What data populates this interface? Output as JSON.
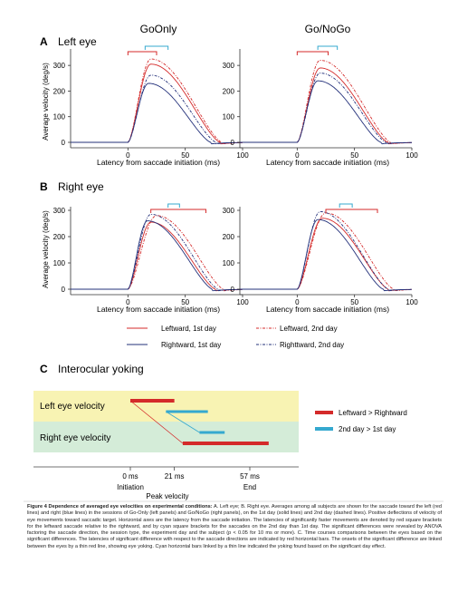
{
  "columns": [
    "GoOnly",
    "Go/NoGo"
  ],
  "panels": {
    "A": {
      "letter": "A",
      "label": "Left eye"
    },
    "B": {
      "letter": "B",
      "label": "Right eye"
    },
    "C": {
      "letter": "C",
      "label": "Interocular yoking"
    }
  },
  "ylabel": "Average velocity (deg/s)",
  "xlabel": "Latency from saccade initiation (ms)",
  "legend": {
    "l1": "Leftward, 1st day",
    "l2": "Leftward, 2nd day",
    "r1": "Rightward, 1st day",
    "r2": "Righttward, 2nd day"
  },
  "colors": {
    "left": "#d42a2a",
    "right": "#23307a",
    "cyan": "#35a9cf",
    "yellow_band": "#f8f3b3",
    "green_band": "#d4ecd8"
  },
  "chart_data": [
    {
      "type": "line",
      "panel": "A",
      "eye": "Left eye",
      "column": "GoOnly",
      "xlim": [
        -50,
        100
      ],
      "ylim": [
        0,
        350
      ],
      "xticks": [
        0,
        50,
        100
      ],
      "yticks": [
        0,
        100,
        200,
        300
      ],
      "series": [
        {
          "name": "Leftward, 1st day",
          "peak_x": 20,
          "peak": 305
        },
        {
          "name": "Leftward, 2nd day",
          "peak_x": 20,
          "peak": 325
        },
        {
          "name": "Rightward, 1st day",
          "peak_x": 18,
          "peak": 230
        },
        {
          "name": "Righttward, 2nd day",
          "peak_x": 20,
          "peak": 262
        }
      ],
      "red_bracket": [
        0,
        25
      ],
      "cyan_bracket": [
        15,
        35
      ]
    },
    {
      "type": "line",
      "panel": "A",
      "eye": "Left eye",
      "column": "Go/NoGo",
      "xlim": [
        -50,
        100
      ],
      "ylim": [
        0,
        350
      ],
      "xticks": [
        0,
        50,
        100
      ],
      "yticks": [
        0,
        100,
        200,
        300
      ],
      "series": [
        {
          "name": "Leftward, 1st day",
          "peak_x": 20,
          "peak": 290
        },
        {
          "name": "Leftward, 2nd day",
          "peak_x": 20,
          "peak": 320
        },
        {
          "name": "Rightward, 1st day",
          "peak_x": 18,
          "peak": 240
        },
        {
          "name": "Righttward, 2nd day",
          "peak_x": 20,
          "peak": 270
        }
      ],
      "red_bracket": [
        0,
        27
      ],
      "cyan_bracket": [
        18,
        35
      ]
    },
    {
      "type": "line",
      "panel": "B",
      "eye": "Right eye",
      "column": "GoOnly",
      "xlim": [
        -50,
        100
      ],
      "ylim": [
        0,
        300
      ],
      "xticks": [
        0,
        50,
        100
      ],
      "yticks": [
        0,
        100,
        200,
        300
      ],
      "series": [
        {
          "name": "Leftward, 1st day",
          "peak_x": 20,
          "peak": 255
        },
        {
          "name": "Leftward, 2nd day",
          "peak_x": 25,
          "peak": 280
        },
        {
          "name": "Rightward, 1st day",
          "peak_x": 17,
          "peak": 260
        },
        {
          "name": "Righttward, 2nd day",
          "peak_x": 20,
          "peak": 285
        }
      ],
      "red_bracket": [
        20,
        68
      ],
      "cyan_bracket": [
        35,
        45
      ]
    },
    {
      "type": "line",
      "panel": "B",
      "eye": "Right eye",
      "column": "Go/NoGo",
      "xlim": [
        -50,
        100
      ],
      "ylim": [
        0,
        300
      ],
      "xticks": [
        0,
        50,
        100
      ],
      "yticks": [
        0,
        100,
        200,
        300
      ],
      "series": [
        {
          "name": "Leftward, 1st day",
          "peak_x": 22,
          "peak": 270
        },
        {
          "name": "Leftward, 2nd day",
          "peak_x": 25,
          "peak": 290
        },
        {
          "name": "Rightward, 1st day",
          "peak_x": 18,
          "peak": 265
        },
        {
          "name": "Righttward, 2nd day",
          "peak_x": 20,
          "peak": 295
        }
      ],
      "red_bracket": [
        25,
        70
      ],
      "cyan_bracket": [
        37,
        48
      ]
    }
  ],
  "yoking": {
    "rows": [
      "Left eye velocity",
      "Right eye velocity"
    ],
    "legend_red": "Leftward > Rightward",
    "legend_cyan": "2nd day > 1st day",
    "ticks": [
      {
        "top": "0 ms",
        "bottom": "Initiation"
      },
      {
        "top": "21 ms",
        "bottom": ""
      },
      {
        "top": "57 ms",
        "bottom": "End"
      }
    ],
    "axis_title": "Peak velocity",
    "bars": {
      "left_red": [
        0,
        21
      ],
      "left_cyan": [
        17,
        37
      ],
      "right_cyan": [
        33,
        45
      ],
      "right_red": [
        25,
        66
      ]
    }
  },
  "caption": {
    "title": "Figure 4 Dependence of averaged eye velocities on experimental conditions:",
    "body": "A. Left eye; B. Right eye. Averages among all subjects are shown for the saccade toward the left (red lines) and right (blue lines) in the sessions of Go-Only (left panels) and Go/NoGo (right panels), on the 1st day (solid lines) and 2nd day (dashed lines). Positive deflections of velocity of eye movements toward saccadic target. Horizontal axes are the latency from the saccade initiation. The latencies of significantly faster movements are denoted by red square brackets for the leftward saccade relative to the rightward, and by cyan square brackets for the saccades on the 2nd day than 1st day. The significant differences were revealed by ANOVA factoring the saccade direction, the session type, the experiment day and the subject (p < 0.05 for 10 ms or more). C. Time courses comparisons between the eyes based on the significant differences. The latencies of significant difference with respect to the saccade directions are indicated by red horizontal bars. The onsets of the significant difference are linked between the eyes by a thin red line, showing eye yoking. Cyan horizontal bars linked by a thin line indicated the yoking found based on the significant day effect."
  }
}
